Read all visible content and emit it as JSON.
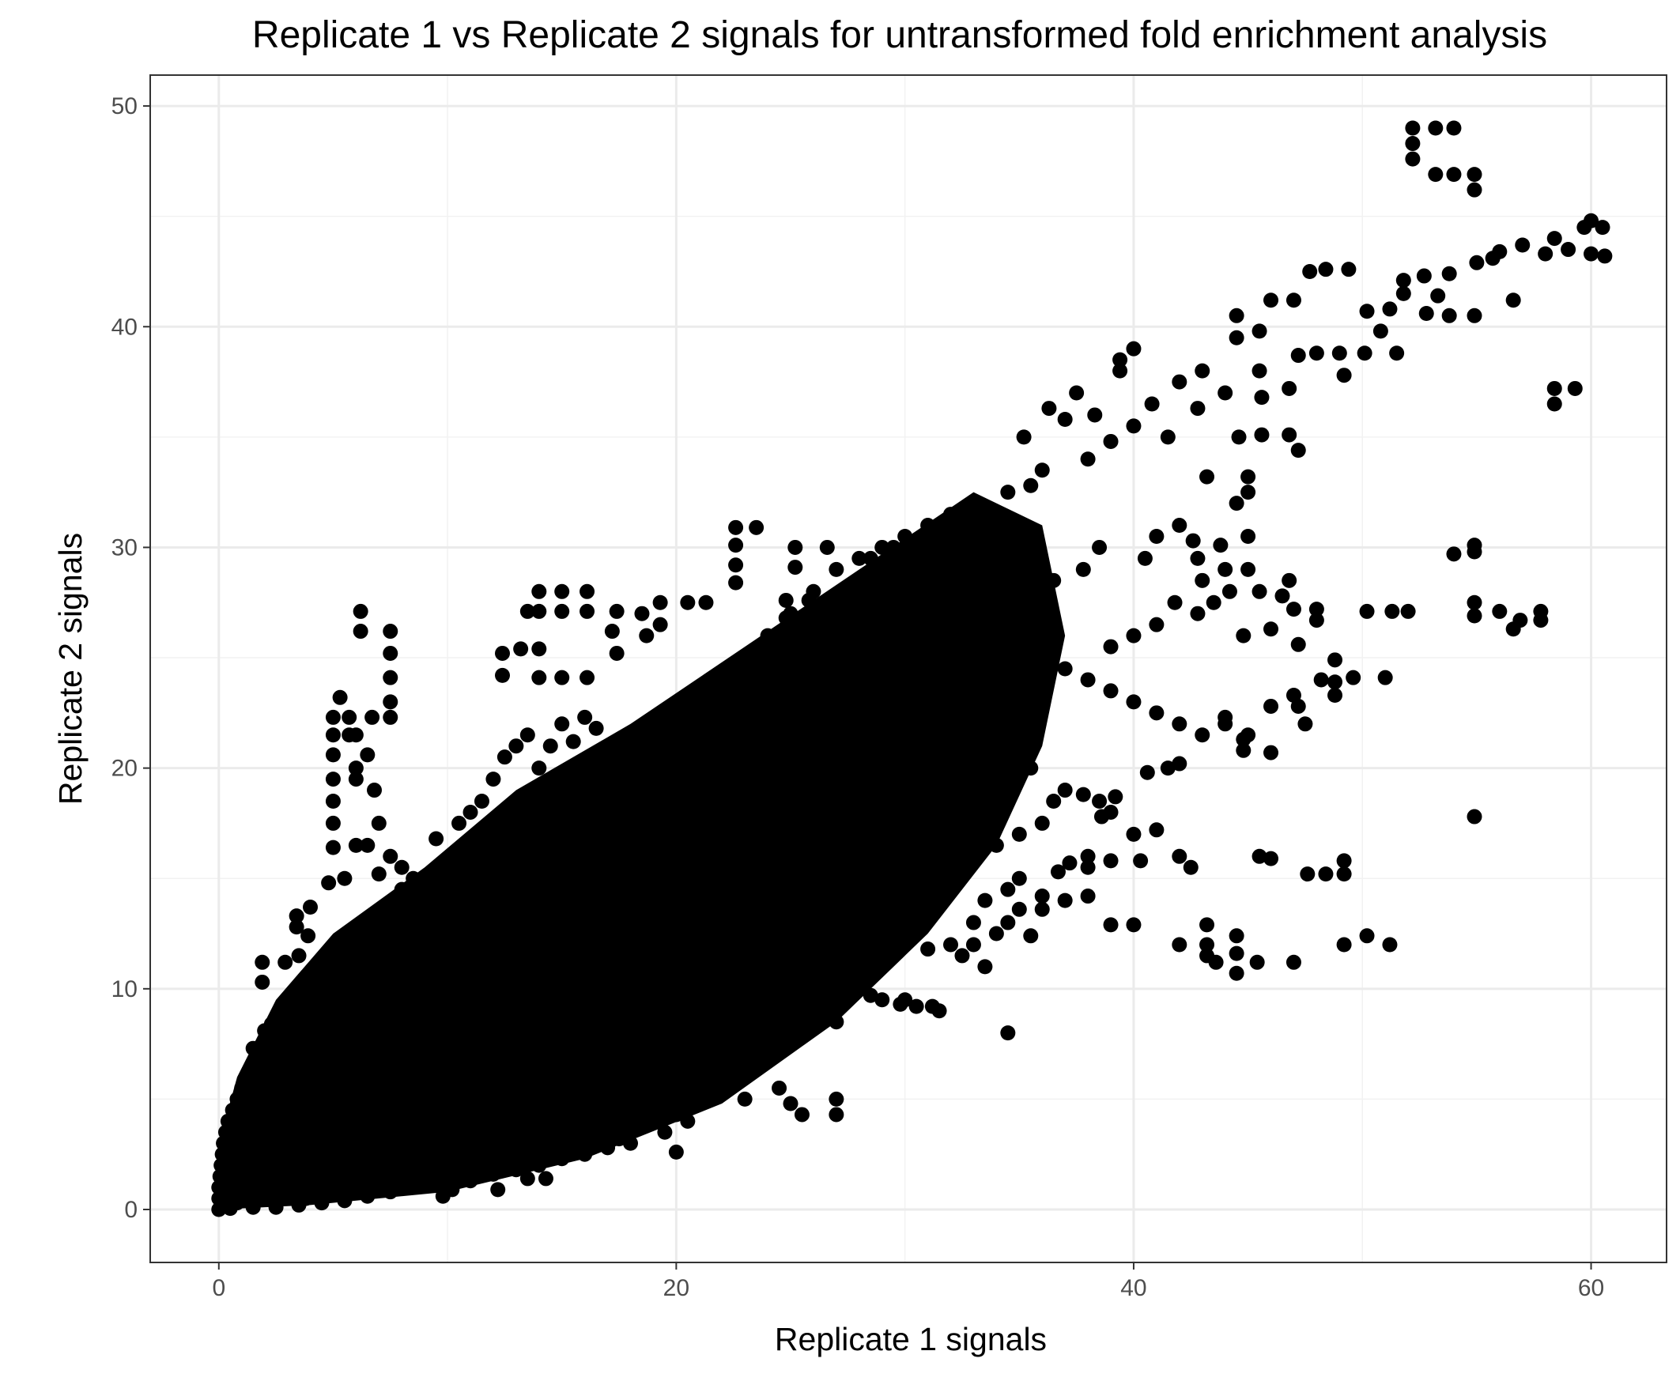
{
  "chart_data": {
    "type": "scatter",
    "title": "Replicate 1 vs Replicate 2 signals for untransformed fold enrichment analysis",
    "xlabel": "Replicate 1 signals",
    "ylabel": "Replicate 2 signals",
    "xlim": [
      -3,
      63.3
    ],
    "ylim": [
      -2.4,
      51.4
    ],
    "x_ticks": [
      0,
      20,
      40,
      60
    ],
    "y_ticks": [
      0,
      10,
      20,
      30,
      40,
      50
    ],
    "x_tick_labels": [
      "0",
      "20",
      "40",
      "60"
    ],
    "y_tick_labels": [
      "0",
      "10",
      "20",
      "30",
      "40",
      "50"
    ],
    "grid": true,
    "legend": "none",
    "point_color": "#000000",
    "points": [
      [
        52.2,
        49.0
      ],
      [
        53.2,
        49.0
      ],
      [
        54.0,
        49.0
      ],
      [
        52.2,
        48.3
      ],
      [
        52.2,
        47.6
      ],
      [
        53.2,
        46.9
      ],
      [
        54.0,
        46.9
      ],
      [
        54.9,
        46.9
      ],
      [
        54.9,
        46.2
      ],
      [
        60.0,
        44.8
      ],
      [
        60.5,
        44.5
      ],
      [
        59.7,
        44.5
      ],
      [
        58.4,
        44.0
      ],
      [
        57.0,
        43.7
      ],
      [
        56.0,
        43.4
      ],
      [
        59.0,
        43.5
      ],
      [
        60.6,
        43.2
      ],
      [
        60.0,
        43.3
      ],
      [
        58.0,
        43.3
      ],
      [
        55.7,
        43.1
      ],
      [
        55.0,
        42.9
      ],
      [
        53.8,
        42.4
      ],
      [
        52.7,
        42.3
      ],
      [
        51.8,
        42.1
      ],
      [
        49.4,
        42.6
      ],
      [
        48.4,
        42.6
      ],
      [
        47.7,
        42.5
      ],
      [
        53.3,
        41.4
      ],
      [
        51.8,
        41.5
      ],
      [
        51.2,
        40.8
      ],
      [
        50.2,
        40.7
      ],
      [
        52.8,
        40.6
      ],
      [
        53.8,
        40.5
      ],
      [
        54.9,
        40.5
      ],
      [
        47.0,
        41.2
      ],
      [
        46.0,
        41.2
      ],
      [
        56.6,
        41.2
      ],
      [
        44.5,
        40.5
      ],
      [
        45.5,
        39.8
      ],
      [
        44.5,
        39.5
      ],
      [
        50.8,
        39.8
      ],
      [
        50.1,
        38.8
      ],
      [
        51.5,
        38.8
      ],
      [
        48.0,
        38.8
      ],
      [
        49.0,
        38.8
      ],
      [
        40.0,
        39.0
      ],
      [
        39.4,
        38.5
      ],
      [
        39.4,
        38.0
      ],
      [
        43.0,
        38.0
      ],
      [
        45.5,
        38.0
      ],
      [
        47.2,
        38.7
      ],
      [
        49.2,
        37.8
      ],
      [
        58.4,
        37.2
      ],
      [
        59.3,
        37.2
      ],
      [
        58.4,
        36.5
      ],
      [
        46.8,
        37.2
      ],
      [
        42.0,
        37.5
      ],
      [
        37.5,
        37.0
      ],
      [
        38.3,
        36.0
      ],
      [
        36.3,
        36.3
      ],
      [
        44.0,
        37.0
      ],
      [
        45.6,
        36.8
      ],
      [
        40.8,
        36.5
      ],
      [
        42.8,
        36.3
      ],
      [
        37.0,
        35.8
      ],
      [
        35.2,
        35.0
      ],
      [
        44.6,
        35.0
      ],
      [
        45.6,
        35.1
      ],
      [
        46.8,
        35.1
      ],
      [
        47.2,
        34.4
      ],
      [
        41.5,
        35.0
      ],
      [
        40.0,
        35.5
      ],
      [
        39.0,
        34.8
      ],
      [
        38.0,
        34.0
      ],
      [
        36.0,
        33.5
      ],
      [
        35.5,
        32.8
      ],
      [
        34.5,
        32.5
      ],
      [
        33.0,
        32.0
      ],
      [
        32.0,
        31.5
      ],
      [
        31.0,
        31.0
      ],
      [
        30.0,
        30.5
      ],
      [
        29.0,
        30.0
      ],
      [
        28.0,
        29.5
      ],
      [
        27.0,
        29.0
      ],
      [
        26.0,
        28.0
      ],
      [
        25.0,
        27.0
      ],
      [
        24.0,
        26.0
      ],
      [
        23.0,
        25.0
      ],
      [
        22.0,
        24.0
      ],
      [
        21.0,
        23.0
      ],
      [
        43.2,
        33.2
      ],
      [
        45.0,
        33.2
      ],
      [
        45.0,
        32.5
      ],
      [
        44.5,
        32.0
      ],
      [
        42.0,
        31.0
      ],
      [
        41.0,
        30.5
      ],
      [
        40.5,
        29.5
      ],
      [
        38.5,
        30.0
      ],
      [
        37.8,
        29.0
      ],
      [
        36.5,
        28.5
      ],
      [
        43.8,
        30.1
      ],
      [
        45.0,
        30.5
      ],
      [
        42.6,
        30.3
      ],
      [
        42.8,
        29.5
      ],
      [
        43.0,
        28.5
      ],
      [
        44.2,
        28.0
      ],
      [
        41.8,
        27.5
      ],
      [
        41.0,
        26.5
      ],
      [
        40.0,
        26.0
      ],
      [
        39.0,
        25.5
      ],
      [
        23.5,
        30.9
      ],
      [
        22.6,
        30.9
      ],
      [
        22.6,
        30.1
      ],
      [
        22.6,
        29.2
      ],
      [
        22.6,
        28.4
      ],
      [
        25.2,
        30.0
      ],
      [
        25.2,
        29.1
      ],
      [
        26.6,
        30.0
      ],
      [
        28.5,
        29.5
      ],
      [
        29.5,
        30.0
      ],
      [
        31.0,
        30.5
      ],
      [
        27.9,
        27.8
      ],
      [
        25.8,
        27.6
      ],
      [
        24.8,
        27.6
      ],
      [
        24.8,
        26.8
      ],
      [
        26.3,
        26.5
      ],
      [
        28.7,
        26.3
      ],
      [
        13.5,
        27.1
      ],
      [
        14.0,
        28.0
      ],
      [
        15.0,
        28.0
      ],
      [
        16.1,
        28.0
      ],
      [
        14.0,
        27.1
      ],
      [
        15.0,
        27.1
      ],
      [
        16.1,
        27.1
      ],
      [
        17.4,
        27.1
      ],
      [
        19.3,
        27.5
      ],
      [
        20.5,
        27.5
      ],
      [
        21.3,
        27.5
      ],
      [
        18.5,
        27.0
      ],
      [
        19.3,
        26.5
      ],
      [
        18.7,
        26.0
      ],
      [
        17.2,
        26.2
      ],
      [
        17.4,
        25.2
      ],
      [
        16.1,
        24.1
      ],
      [
        15.0,
        24.1
      ],
      [
        14.0,
        24.1
      ],
      [
        12.4,
        24.2
      ],
      [
        12.4,
        25.2
      ],
      [
        13.2,
        25.4
      ],
      [
        14.0,
        25.4
      ],
      [
        6.2,
        27.1
      ],
      [
        6.2,
        26.2
      ],
      [
        7.5,
        26.2
      ],
      [
        7.5,
        25.2
      ],
      [
        7.5,
        24.1
      ],
      [
        7.5,
        23.0
      ],
      [
        7.5,
        22.3
      ],
      [
        6.7,
        22.3
      ],
      [
        5.7,
        22.3
      ],
      [
        5.7,
        21.5
      ],
      [
        5.0,
        22.3
      ],
      [
        5.0,
        21.5
      ],
      [
        5.0,
        20.6
      ],
      [
        5.0,
        19.5
      ],
      [
        5.0,
        18.5
      ],
      [
        5.0,
        17.5
      ],
      [
        5.0,
        16.4
      ],
      [
        6.0,
        21.5
      ],
      [
        6.5,
        20.6
      ],
      [
        6.0,
        19.5
      ],
      [
        5.3,
        23.2
      ],
      [
        6.0,
        20.0
      ],
      [
        6.8,
        19.0
      ],
      [
        7.0,
        17.5
      ],
      [
        6.5,
        16.5
      ],
      [
        7.5,
        16.0
      ],
      [
        8.0,
        15.5
      ],
      [
        8.5,
        15.0
      ],
      [
        9.0,
        14.5
      ],
      [
        9.5,
        14.0
      ],
      [
        36.0,
        25.0
      ],
      [
        37.0,
        24.5
      ],
      [
        38.0,
        24.0
      ],
      [
        39.0,
        23.5
      ],
      [
        40.0,
        23.0
      ],
      [
        41.0,
        22.5
      ],
      [
        42.0,
        22.0
      ],
      [
        43.0,
        21.5
      ],
      [
        44.0,
        22.0
      ],
      [
        45.0,
        21.5
      ],
      [
        46.0,
        22.8
      ],
      [
        47.2,
        22.8
      ],
      [
        47.5,
        22.0
      ],
      [
        48.8,
        23.3
      ],
      [
        48.8,
        23.9
      ],
      [
        48.8,
        24.9
      ],
      [
        49.6,
        24.1
      ],
      [
        47.2,
        25.6
      ],
      [
        46.0,
        26.3
      ],
      [
        47.0,
        27.2
      ],
      [
        48.0,
        27.2
      ],
      [
        48.0,
        26.7
      ],
      [
        50.2,
        27.1
      ],
      [
        51.3,
        27.1
      ],
      [
        52.0,
        27.1
      ],
      [
        54.9,
        27.5
      ],
      [
        54.9,
        26.9
      ],
      [
        56.0,
        27.1
      ],
      [
        56.9,
        26.7
      ],
      [
        57.8,
        27.1
      ],
      [
        56.6,
        26.3
      ],
      [
        57.8,
        26.7
      ],
      [
        54.9,
        29.8
      ],
      [
        54.9,
        30.1
      ],
      [
        54.0,
        29.7
      ],
      [
        46.8,
        28.5
      ],
      [
        45.5,
        28.0
      ],
      [
        45.0,
        29.0
      ],
      [
        44.0,
        29.0
      ],
      [
        43.5,
        27.5
      ],
      [
        42.8,
        27.0
      ],
      [
        44.8,
        26.0
      ],
      [
        46.5,
        27.8
      ],
      [
        51.0,
        24.1
      ],
      [
        48.2,
        24.0
      ],
      [
        47.0,
        23.3
      ],
      [
        46.0,
        20.7
      ],
      [
        44.8,
        20.8
      ],
      [
        44.8,
        21.3
      ],
      [
        44.0,
        22.3
      ],
      [
        41.5,
        20.0
      ],
      [
        42.0,
        20.2
      ],
      [
        40.6,
        19.8
      ],
      [
        41.0,
        17.2
      ],
      [
        40.0,
        17.0
      ],
      [
        39.0,
        18.0
      ],
      [
        38.5,
        18.5
      ],
      [
        37.0,
        19.0
      ],
      [
        38.0,
        16.0
      ],
      [
        37.2,
        15.7
      ],
      [
        35.5,
        20.0
      ],
      [
        36.0,
        17.5
      ],
      [
        35.0,
        17.0
      ],
      [
        34.0,
        16.5
      ],
      [
        33.0,
        17.0
      ],
      [
        32.0,
        16.0
      ],
      [
        31.0,
        15.5
      ],
      [
        30.0,
        15.0
      ],
      [
        29.0,
        14.5
      ],
      [
        28.0,
        14.0
      ],
      [
        36.5,
        18.5
      ],
      [
        37.8,
        18.8
      ],
      [
        39.2,
        18.7
      ],
      [
        38.6,
        17.8
      ],
      [
        39.0,
        15.8
      ],
      [
        38.0,
        15.5
      ],
      [
        36.7,
        15.3
      ],
      [
        35.0,
        15.0
      ],
      [
        34.5,
        14.5
      ],
      [
        33.5,
        14.0
      ],
      [
        36.0,
        14.2
      ],
      [
        37.0,
        14.0
      ],
      [
        38.0,
        14.2
      ],
      [
        36.0,
        13.6
      ],
      [
        35.0,
        13.6
      ],
      [
        34.5,
        13.0
      ],
      [
        33.0,
        13.0
      ],
      [
        34.0,
        12.5
      ],
      [
        35.5,
        12.4
      ],
      [
        33.0,
        12.0
      ],
      [
        39.0,
        12.9
      ],
      [
        40.0,
        12.9
      ],
      [
        40.3,
        15.8
      ],
      [
        42.0,
        16.0
      ],
      [
        42.5,
        15.5
      ],
      [
        43.2,
        12.9
      ],
      [
        42.0,
        12.0
      ],
      [
        43.2,
        12.0
      ],
      [
        43.2,
        11.5
      ],
      [
        44.5,
        12.4
      ],
      [
        44.5,
        11.6
      ],
      [
        45.4,
        11.2
      ],
      [
        44.5,
        10.7
      ],
      [
        43.6,
        11.2
      ],
      [
        47.0,
        11.2
      ],
      [
        45.5,
        16.0
      ],
      [
        46.0,
        15.9
      ],
      [
        47.6,
        15.2
      ],
      [
        48.4,
        15.2
      ],
      [
        49.2,
        15.2
      ],
      [
        49.2,
        15.8
      ],
      [
        49.2,
        12.0
      ],
      [
        50.2,
        12.4
      ],
      [
        51.2,
        12.0
      ],
      [
        54.9,
        17.8
      ],
      [
        34.5,
        8.0
      ],
      [
        33.5,
        11.0
      ],
      [
        32.5,
        11.5
      ],
      [
        32.0,
        12.0
      ],
      [
        31.0,
        11.8
      ],
      [
        30.0,
        12.0
      ],
      [
        29.5,
        11.5
      ],
      [
        29.0,
        11.0
      ],
      [
        28.5,
        11.0
      ],
      [
        27.5,
        10.5
      ],
      [
        27.0,
        10.0
      ],
      [
        26.5,
        9.5
      ],
      [
        26.0,
        9.0
      ],
      [
        25.5,
        8.5
      ],
      [
        25.0,
        8.0
      ],
      [
        29.0,
        9.5
      ],
      [
        29.8,
        9.3
      ],
      [
        30.5,
        9.2
      ],
      [
        31.2,
        9.2
      ],
      [
        31.5,
        9.0
      ],
      [
        30.0,
        9.5
      ],
      [
        28.5,
        9.7
      ],
      [
        28.0,
        10.2
      ],
      [
        27.2,
        9.5
      ],
      [
        27.0,
        8.5
      ],
      [
        27.0,
        5.0
      ],
      [
        27.0,
        4.3
      ],
      [
        25.5,
        4.3
      ],
      [
        25.0,
        4.8
      ],
      [
        24.5,
        5.5
      ],
      [
        23.0,
        5.0
      ],
      [
        22.0,
        5.5
      ],
      [
        21.0,
        5.0
      ],
      [
        20.5,
        4.0
      ],
      [
        20.0,
        4.3
      ],
      [
        19.5,
        3.5
      ],
      [
        18.5,
        3.8
      ],
      [
        18.0,
        3.0
      ],
      [
        17.0,
        2.8
      ],
      [
        16.0,
        2.5
      ],
      [
        15.0,
        2.3
      ],
      [
        14.0,
        2.0
      ],
      [
        13.0,
        1.8
      ],
      [
        12.0,
        1.6
      ],
      [
        11.0,
        1.3
      ],
      [
        20.0,
        2.6
      ],
      [
        17.5,
        3.2
      ],
      [
        16.5,
        3.8
      ],
      [
        15.5,
        3.5
      ],
      [
        14.5,
        2.9
      ],
      [
        13.5,
        3.1
      ],
      [
        12.5,
        2.5
      ],
      [
        11.5,
        2.3
      ],
      [
        10.5,
        1.9
      ],
      [
        9.5,
        1.5
      ],
      [
        8.5,
        1.2
      ],
      [
        7.5,
        0.8
      ],
      [
        6.5,
        0.6
      ],
      [
        5.5,
        0.4
      ],
      [
        4.5,
        0.3
      ],
      [
        3.5,
        0.2
      ],
      [
        2.5,
        0.1
      ],
      [
        1.5,
        0.1
      ],
      [
        0.5,
        0.05
      ],
      [
        0.0,
        0.0
      ],
      [
        9.8,
        0.6
      ],
      [
        10.2,
        0.9
      ],
      [
        12.2,
        0.9
      ],
      [
        13.5,
        1.4
      ],
      [
        14.3,
        1.4
      ],
      [
        8.0,
        1.3
      ],
      [
        7.0,
        1.2
      ],
      [
        6.2,
        0.9
      ],
      [
        5.0,
        0.7
      ],
      [
        3.8,
        0.5
      ],
      [
        2.0,
        8.1
      ],
      [
        2.3,
        8.4
      ],
      [
        1.5,
        7.3
      ],
      [
        2.0,
        7.0
      ],
      [
        1.2,
        6.0
      ],
      [
        1.0,
        5.5
      ],
      [
        0.8,
        5.0
      ],
      [
        0.6,
        4.5
      ],
      [
        0.4,
        4.0
      ],
      [
        0.3,
        3.5
      ],
      [
        0.2,
        3.0
      ],
      [
        0.15,
        2.5
      ],
      [
        0.1,
        2.0
      ],
      [
        0.05,
        1.5
      ],
      [
        0.0,
        1.0
      ],
      [
        0.0,
        0.5
      ],
      [
        0.3,
        0.2
      ],
      [
        0.8,
        0.3
      ],
      [
        1.2,
        0.4
      ],
      [
        1.8,
        0.6
      ],
      [
        1.9,
        11.2
      ],
      [
        1.9,
        10.3
      ],
      [
        2.9,
        11.2
      ],
      [
        3.5,
        11.5
      ],
      [
        3.9,
        12.4
      ],
      [
        3.4,
        12.8
      ],
      [
        3.4,
        13.3
      ],
      [
        4.0,
        13.7
      ],
      [
        4.8,
        14.8
      ],
      [
        5.5,
        15.0
      ],
      [
        6.0,
        16.5
      ],
      [
        7.0,
        15.2
      ],
      [
        8.0,
        14.5
      ],
      [
        7.5,
        13.8
      ],
      [
        8.5,
        13.3
      ],
      [
        9.0,
        12.5
      ],
      [
        9.5,
        16.8
      ],
      [
        10.5,
        17.5
      ],
      [
        11.0,
        18.0
      ],
      [
        11.5,
        18.5
      ],
      [
        12.0,
        19.5
      ],
      [
        12.5,
        20.5
      ],
      [
        13.0,
        21.0
      ],
      [
        13.5,
        21.5
      ],
      [
        14.0,
        20.0
      ],
      [
        14.5,
        21.0
      ],
      [
        15.0,
        22.0
      ],
      [
        15.5,
        21.2
      ],
      [
        16.0,
        22.3
      ],
      [
        16.5,
        21.8
      ]
    ]
  }
}
